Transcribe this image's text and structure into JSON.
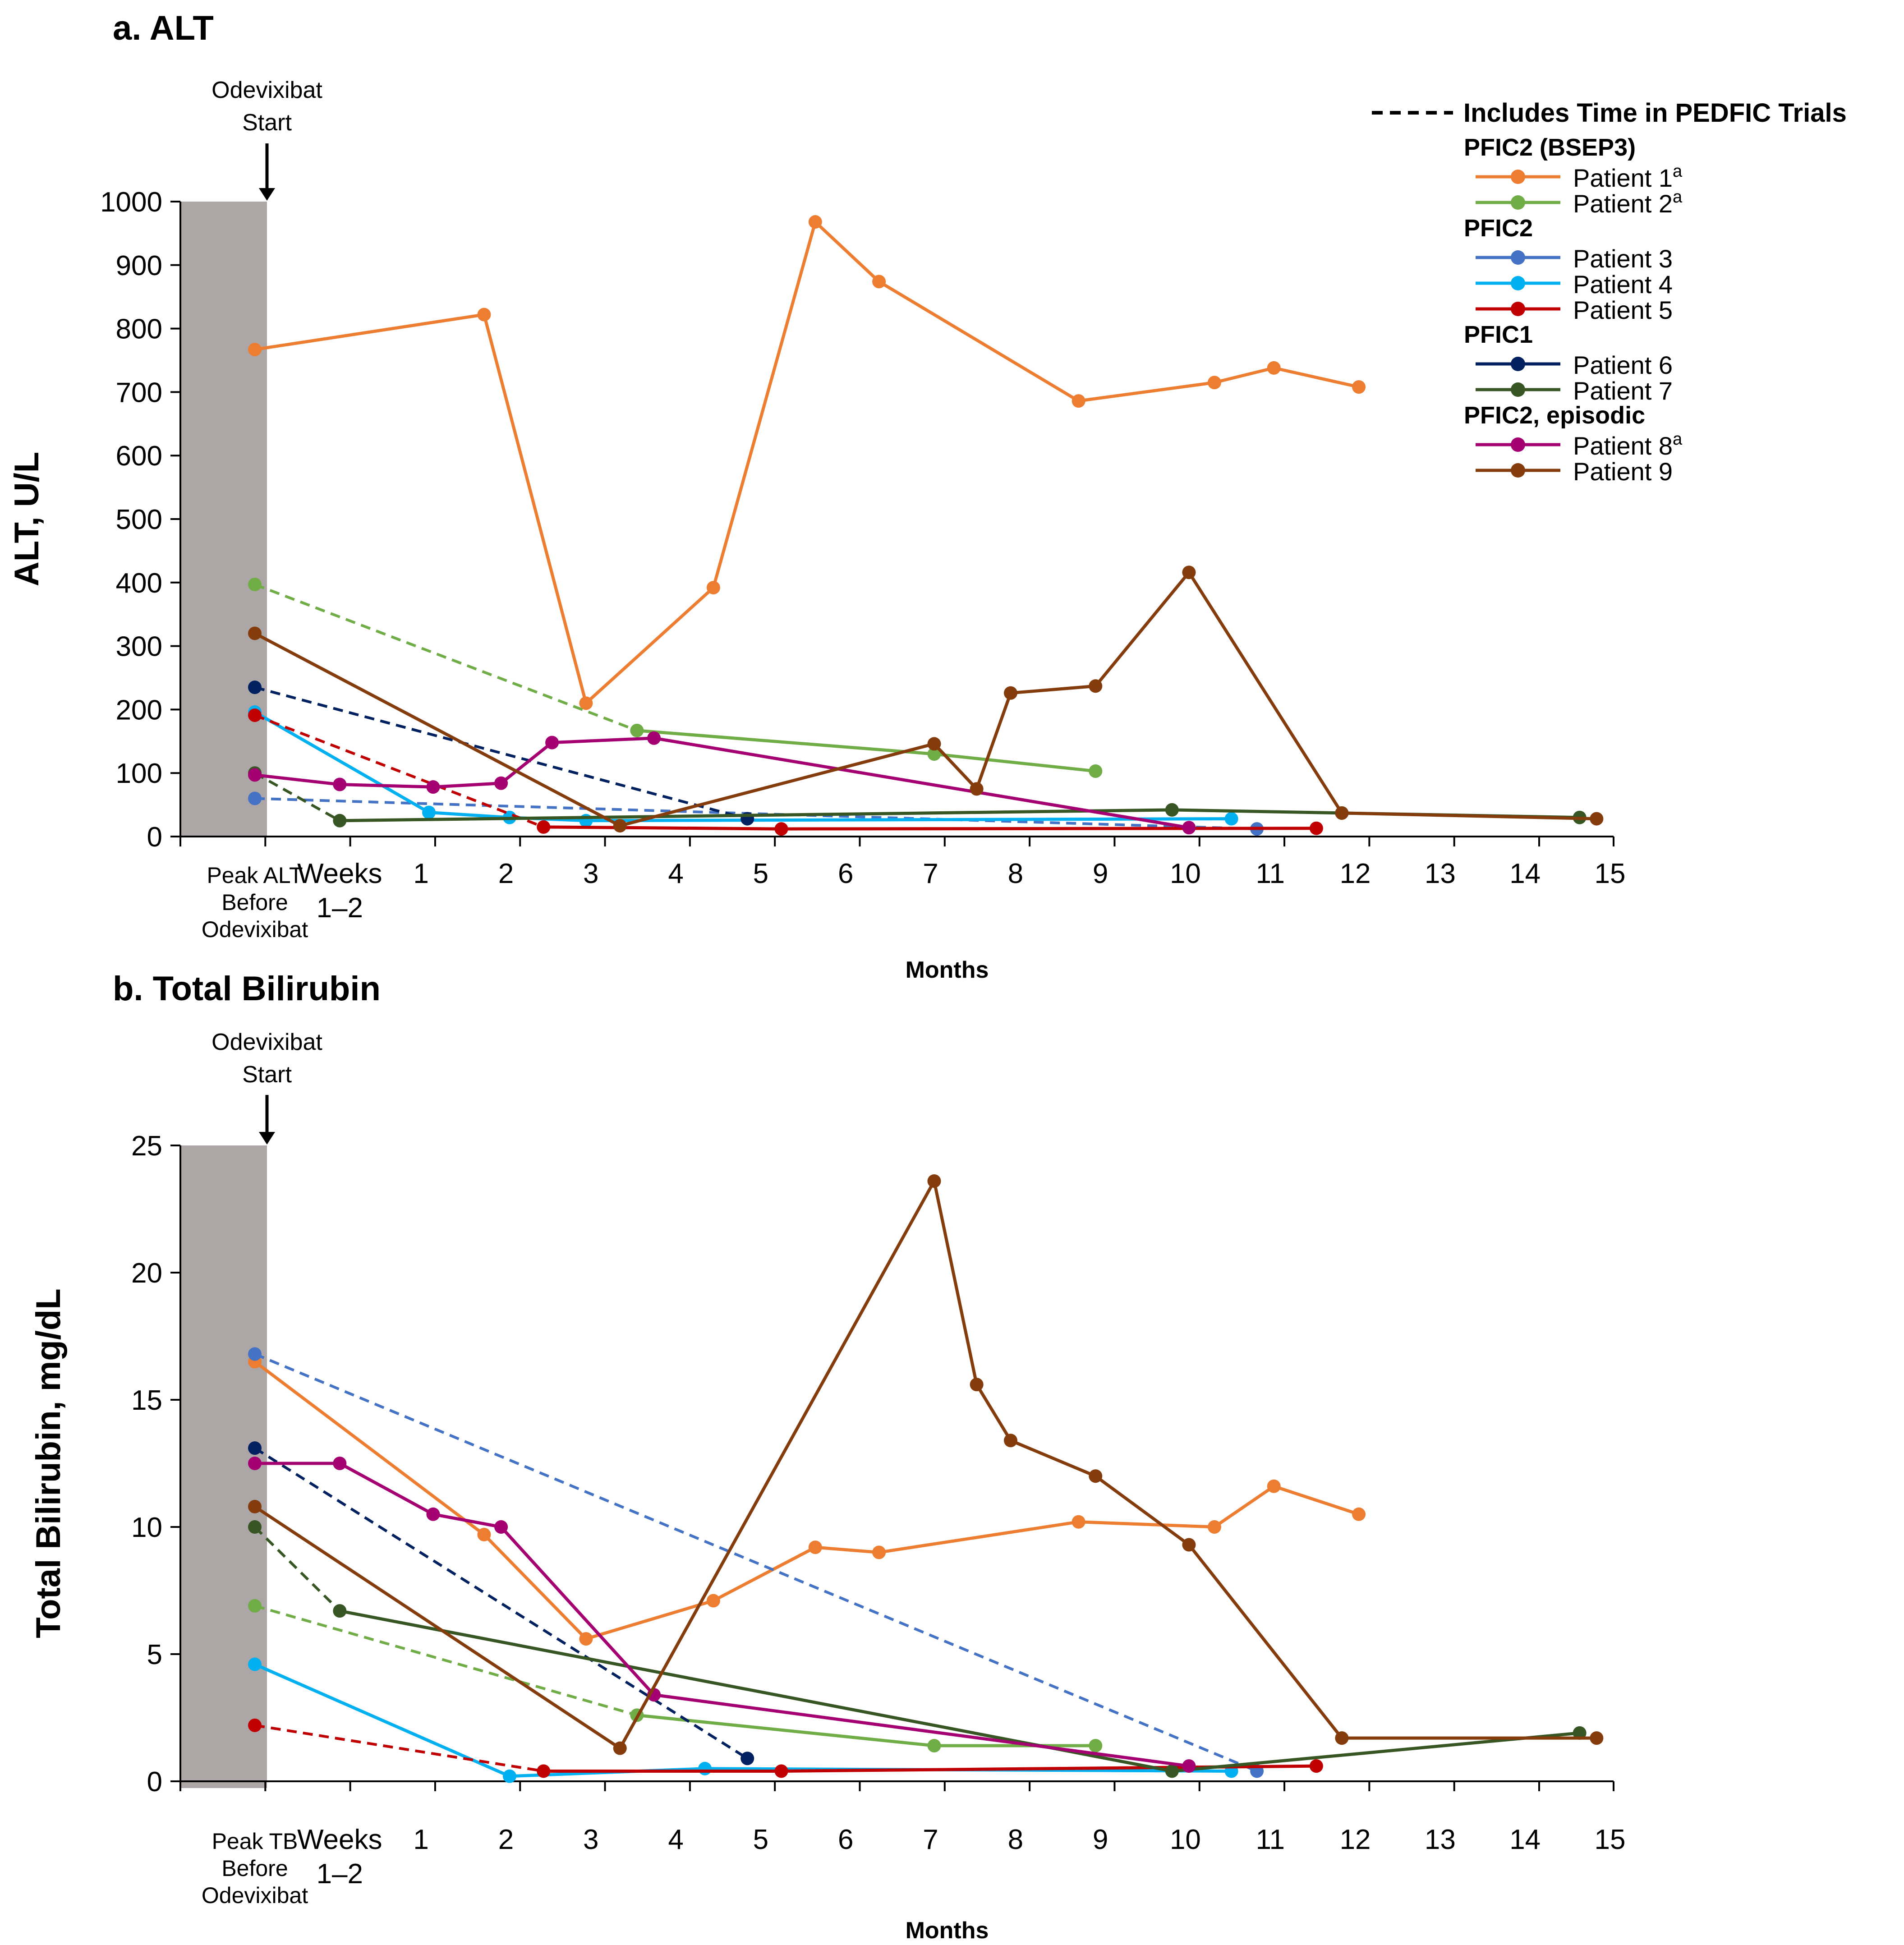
{
  "colors": {
    "shade": "#aca6a6",
    "p1": "#ed7d31",
    "p2": "#70ad47",
    "p3": "#4472c4",
    "p4": "#00b0f0",
    "p5": "#c00000",
    "p6": "#002060",
    "p7": "#375623",
    "p8": "#a50071",
    "p9": "#843c0c"
  },
  "legend": {
    "dashed_note": "Includes Time in PEDFIC Trials",
    "groups": [
      {
        "header": "PFIC2 (BSEP3)",
        "items": [
          {
            "label": "Patient 1",
            "sup": "a",
            "color": "p1"
          },
          {
            "label": "Patient 2",
            "sup": "a",
            "color": "p2"
          }
        ]
      },
      {
        "header": "PFIC2",
        "items": [
          {
            "label": "Patient 3",
            "sup": "",
            "color": "p3"
          },
          {
            "label": "Patient 4",
            "sup": "",
            "color": "p4"
          },
          {
            "label": "Patient 5",
            "sup": "",
            "color": "p5"
          }
        ]
      },
      {
        "header": "PFIC1",
        "items": [
          {
            "label": "Patient 6",
            "sup": "",
            "color": "p6"
          },
          {
            "label": "Patient 7",
            "sup": "",
            "color": "p7"
          }
        ]
      },
      {
        "header": "PFIC2, episodic",
        "items": [
          {
            "label": "Patient 8",
            "sup": "a",
            "color": "p8"
          },
          {
            "label": "Patient 9",
            "sup": "",
            "color": "p9"
          }
        ]
      }
    ]
  },
  "chart_data": [
    {
      "type": "line",
      "title": "a. ALT",
      "ylabel": "ALT, U/L",
      "xlabel": "Months",
      "ylim": [
        0,
        1000
      ],
      "yticks": [
        0,
        100,
        200,
        300,
        400,
        500,
        600,
        700,
        800,
        900,
        1000
      ],
      "x_scale": "x = -1 is the peak value before odevixibat; x = 0 is weeks 1-2; x = 1..15 are months",
      "x_categories": [
        {
          "x": -1,
          "lines": [
            "Peak ALT",
            "Before",
            "Odevixibat"
          ]
        },
        {
          "x": 0,
          "lines": [
            "Weeks",
            "1–2"
          ]
        },
        {
          "x": 1,
          "lines": [
            "1"
          ]
        },
        {
          "x": 2,
          "lines": [
            "2"
          ]
        },
        {
          "x": 3,
          "lines": [
            "3"
          ]
        },
        {
          "x": 4,
          "lines": [
            "4"
          ]
        },
        {
          "x": 5,
          "lines": [
            "5"
          ]
        },
        {
          "x": 6,
          "lines": [
            "6"
          ]
        },
        {
          "x": 7,
          "lines": [
            "7"
          ]
        },
        {
          "x": 8,
          "lines": [
            "8"
          ]
        },
        {
          "x": 9,
          "lines": [
            "9"
          ]
        },
        {
          "x": 10,
          "lines": [
            "10"
          ]
        },
        {
          "x": 11,
          "lines": [
            "11"
          ]
        },
        {
          "x": 12,
          "lines": [
            "12"
          ]
        },
        {
          "x": 13,
          "lines": [
            "13"
          ]
        },
        {
          "x": 14,
          "lines": [
            "14"
          ]
        },
        {
          "x": 15,
          "lines": [
            "15"
          ]
        }
      ],
      "annotation": {
        "text": [
          "Odevixibat",
          "Start"
        ]
      },
      "series": [
        {
          "name": "Patient 1",
          "color": "p1",
          "dashed_segments": 0,
          "points": [
            [
              -1,
              767
            ],
            [
              1.7,
              822
            ],
            [
              2.9,
              210
            ],
            [
              4.4,
              392
            ],
            [
              5.6,
              968
            ],
            [
              6.35,
              874
            ],
            [
              8.7,
              686
            ],
            [
              10.3,
              715
            ],
            [
              11,
              738
            ],
            [
              12,
              708
            ]
          ]
        },
        {
          "name": "Patient 2",
          "color": "p2",
          "dashed_segments": 1,
          "points": [
            [
              -1,
              397
            ],
            [
              3.5,
              167
            ],
            [
              7,
              130
            ],
            [
              8.9,
              103
            ]
          ]
        },
        {
          "name": "Patient 3",
          "color": "p3",
          "dashed_segments": 1,
          "points": [
            [
              -1,
              60
            ],
            [
              10.8,
              12
            ]
          ]
        },
        {
          "name": "Patient 4",
          "color": "p4",
          "dashed_segments": 0,
          "points": [
            [
              -1,
              196
            ],
            [
              1.05,
              38
            ],
            [
              2,
              30
            ],
            [
              2.9,
              25
            ],
            [
              10.5,
              28
            ]
          ]
        },
        {
          "name": "Patient 5",
          "color": "p5",
          "dashed_segments": 1,
          "points": [
            [
              -1,
              191
            ],
            [
              2.4,
              15
            ],
            [
              5.2,
              12
            ],
            [
              11.5,
              13
            ]
          ]
        },
        {
          "name": "Patient 6",
          "color": "p6",
          "dashed_segments": 1,
          "points": [
            [
              -1,
              235
            ],
            [
              4.8,
              28
            ]
          ]
        },
        {
          "name": "Patient 7",
          "color": "p7",
          "dashed_segments": 1,
          "points": [
            [
              -1,
              100
            ],
            [
              0,
              25
            ],
            [
              9.8,
              42
            ],
            [
              11.8,
              37
            ],
            [
              14.6,
              30
            ]
          ]
        },
        {
          "name": "Patient 8",
          "color": "p8",
          "dashed_segments": 0,
          "points": [
            [
              -1,
              97
            ],
            [
              0,
              82
            ],
            [
              1.1,
              78
            ],
            [
              1.9,
              84
            ],
            [
              2.5,
              148
            ],
            [
              3.7,
              155
            ],
            [
              10,
              14
            ]
          ]
        },
        {
          "name": "Patient 9",
          "color": "p9",
          "dashed_segments": 0,
          "points": [
            [
              -1,
              320
            ],
            [
              3.3,
              17
            ],
            [
              7,
              146
            ],
            [
              7.5,
              75
            ],
            [
              7.9,
              226
            ],
            [
              8.9,
              237
            ],
            [
              10,
              416
            ],
            [
              11.8,
              37
            ],
            [
              14.8,
              28
            ]
          ]
        }
      ]
    },
    {
      "type": "line",
      "title": "b. Total Bilirubin",
      "ylabel": "Total Bilirubin, mg/dL",
      "xlabel": "Months",
      "ylim": [
        0,
        25
      ],
      "yticks": [
        0,
        5,
        10,
        15,
        20,
        25
      ],
      "x_scale": "x = -1 is the peak value before odevixibat; x = 0 is weeks 1-2; x = 1..15 are months",
      "x_categories": [
        {
          "x": -1,
          "lines": [
            "Peak TB",
            "Before",
            "Odevixibat"
          ]
        },
        {
          "x": 0,
          "lines": [
            "Weeks",
            "1–2"
          ]
        },
        {
          "x": 1,
          "lines": [
            "1"
          ]
        },
        {
          "x": 2,
          "lines": [
            "2"
          ]
        },
        {
          "x": 3,
          "lines": [
            "3"
          ]
        },
        {
          "x": 4,
          "lines": [
            "4"
          ]
        },
        {
          "x": 5,
          "lines": [
            "5"
          ]
        },
        {
          "x": 6,
          "lines": [
            "6"
          ]
        },
        {
          "x": 7,
          "lines": [
            "7"
          ]
        },
        {
          "x": 8,
          "lines": [
            "8"
          ]
        },
        {
          "x": 9,
          "lines": [
            "9"
          ]
        },
        {
          "x": 10,
          "lines": [
            "10"
          ]
        },
        {
          "x": 11,
          "lines": [
            "11"
          ]
        },
        {
          "x": 12,
          "lines": [
            "12"
          ]
        },
        {
          "x": 13,
          "lines": [
            "13"
          ]
        },
        {
          "x": 14,
          "lines": [
            "14"
          ]
        },
        {
          "x": 15,
          "lines": [
            "15"
          ]
        }
      ],
      "annotation": {
        "text": [
          "Odevixibat",
          "Start"
        ]
      },
      "series": [
        {
          "name": "Patient 1",
          "color": "p1",
          "dashed_segments": 0,
          "points": [
            [
              -1,
              16.5
            ],
            [
              1.7,
              9.7
            ],
            [
              2.9,
              5.6
            ],
            [
              4.4,
              7.1
            ],
            [
              5.6,
              9.2
            ],
            [
              6.35,
              9
            ],
            [
              8.7,
              10.2
            ],
            [
              10.3,
              10
            ],
            [
              11,
              11.6
            ],
            [
              12,
              10.5
            ]
          ]
        },
        {
          "name": "Patient 2",
          "color": "p2",
          "dashed_segments": 1,
          "points": [
            [
              -1,
              6.9
            ],
            [
              3.5,
              2.6
            ],
            [
              7,
              1.4
            ],
            [
              8.9,
              1.4
            ]
          ]
        },
        {
          "name": "Patient 3",
          "color": "p3",
          "dashed_segments": 1,
          "points": [
            [
              -1,
              16.8
            ],
            [
              10.8,
              0.4
            ]
          ]
        },
        {
          "name": "Patient 4",
          "color": "p4",
          "dashed_segments": 0,
          "points": [
            [
              -1,
              4.6
            ],
            [
              2,
              0.2
            ],
            [
              4.3,
              0.5
            ],
            [
              10.5,
              0.4
            ]
          ]
        },
        {
          "name": "Patient 5",
          "color": "p5",
          "dashed_segments": 1,
          "points": [
            [
              -1,
              2.2
            ],
            [
              2.4,
              0.4
            ],
            [
              5.2,
              0.4
            ],
            [
              11.5,
              0.6
            ]
          ]
        },
        {
          "name": "Patient 6",
          "color": "p6",
          "dashed_segments": 1,
          "points": [
            [
              -1,
              13.1
            ],
            [
              4.8,
              0.9
            ]
          ]
        },
        {
          "name": "Patient 7",
          "color": "p7",
          "dashed_segments": 1,
          "points": [
            [
              -1,
              10
            ],
            [
              0,
              6.7
            ],
            [
              9.8,
              0.4
            ],
            [
              14.6,
              1.9
            ]
          ]
        },
        {
          "name": "Patient 8",
          "color": "p8",
          "dashed_segments": 0,
          "points": [
            [
              -1,
              12.5
            ],
            [
              0,
              12.5
            ],
            [
              1.1,
              10.5
            ],
            [
              1.9,
              10
            ],
            [
              3.7,
              3.4
            ],
            [
              10,
              0.6
            ]
          ]
        },
        {
          "name": "Patient 9",
          "color": "p9",
          "dashed_segments": 0,
          "points": [
            [
              -1,
              10.8
            ],
            [
              3.3,
              1.3
            ],
            [
              7,
              23.6
            ],
            [
              7.5,
              15.6
            ],
            [
              7.9,
              13.4
            ],
            [
              8.9,
              12
            ],
            [
              10,
              9.3
            ],
            [
              11.8,
              1.7
            ],
            [
              14.8,
              1.7
            ]
          ]
        }
      ]
    }
  ]
}
